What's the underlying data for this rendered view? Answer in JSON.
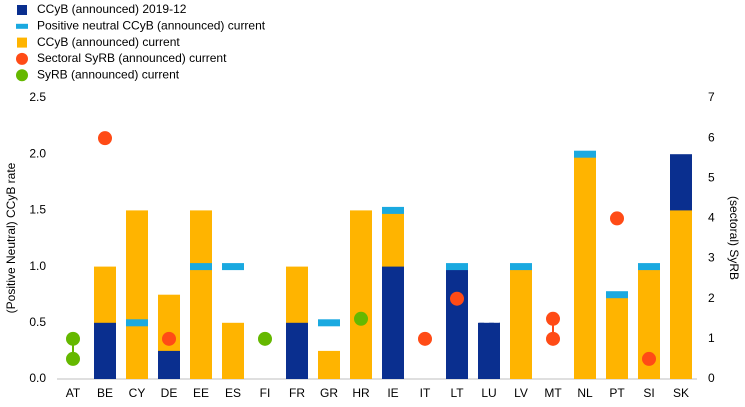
{
  "chart_data": {
    "type": "bar",
    "y_label": "(Positive Neutral) CCyB rate",
    "y2_label": "(sectoral) SyRB",
    "categories": [
      "AT",
      "BE",
      "CY",
      "DE",
      "EE",
      "ES",
      "FI",
      "FR",
      "GR",
      "HR",
      "IE",
      "IT",
      "LT",
      "LU",
      "LV",
      "MT",
      "NL",
      "PT",
      "SI",
      "SK"
    ],
    "series": [
      {
        "name": "CCyB (announced) 2019-12",
        "color": "#0a2f8f",
        "mark": "bar",
        "values": [
          null,
          0.5,
          null,
          0.25,
          null,
          null,
          null,
          0.5,
          null,
          null,
          1.0,
          null,
          1.0,
          0.5,
          null,
          null,
          null,
          null,
          null,
          2.0
        ]
      },
      {
        "name": "Positive neutral CCyB (announced) current",
        "color": "#1aa9e0",
        "mark": "dash",
        "values": [
          null,
          null,
          0.5,
          null,
          1.0,
          1.0,
          null,
          null,
          0.5,
          null,
          1.5,
          null,
          1.0,
          null,
          1.0,
          null,
          2.0,
          0.75,
          1.0,
          null
        ]
      },
      {
        "name": "CCyB (announced) current",
        "color": "#ffb400",
        "mark": "bar",
        "values": [
          null,
          1.0,
          1.5,
          0.75,
          1.5,
          0.5,
          null,
          1.0,
          0.25,
          1.5,
          1.5,
          null,
          1.0,
          0.5,
          1.0,
          null,
          2.0,
          0.75,
          1.0,
          1.5
        ]
      },
      {
        "name": "Sectoral SyRB (announced) current",
        "color": "#ff4b16",
        "mark": "dot",
        "axis": "y2",
        "values": [
          null,
          6,
          null,
          1,
          null,
          null,
          null,
          null,
          null,
          null,
          null,
          1,
          2,
          null,
          null,
          [
            1,
            1.5
          ],
          null,
          4,
          0.5,
          null
        ]
      },
      {
        "name": "SyRB (announced) current",
        "color": "#65b800",
        "mark": "dot",
        "axis": "y2",
        "values": [
          [
            0.5,
            1
          ],
          null,
          null,
          null,
          null,
          null,
          1,
          null,
          null,
          1.5,
          null,
          null,
          null,
          null,
          null,
          null,
          null,
          null,
          null,
          null
        ]
      }
    ],
    "ylim": [
      0,
      2.5
    ],
    "yticks": [
      {
        "value": 0,
        "label": "0.0"
      },
      0.5,
      {
        "value": 1,
        "label": "1.0"
      },
      1.5,
      {
        "value": 2,
        "label": "2.0"
      },
      2.5
    ],
    "y2lim": [
      0,
      7
    ],
    "y2ticks": [
      0,
      1,
      2,
      3,
      4,
      5,
      6,
      7
    ],
    "grid": false
  }
}
